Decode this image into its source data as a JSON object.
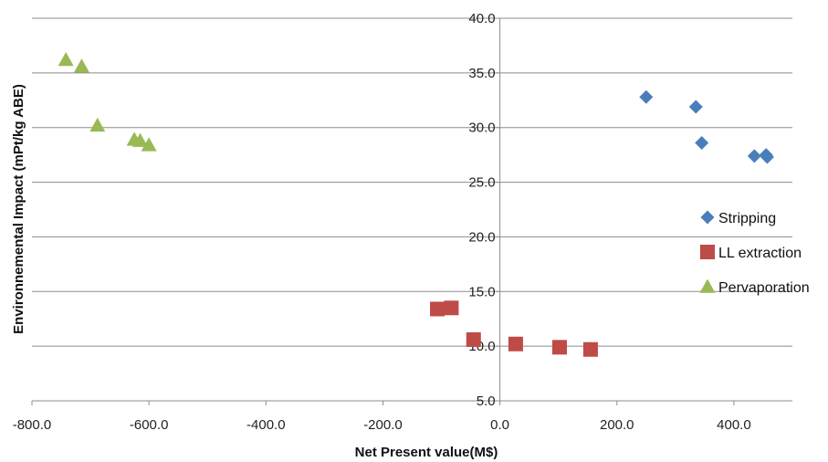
{
  "chart_data": {
    "type": "scatter",
    "title": "",
    "xlabel": "Net Present value(M$)",
    "ylabel": "Environnemental Impact (mPt/kg ABE)",
    "xlim": [
      -800,
      500
    ],
    "ylim": [
      5,
      40
    ],
    "x_ticks": [
      -800,
      -600,
      -400,
      -200,
      0,
      200,
      400
    ],
    "x_tick_labels": [
      "-800.0",
      "-600.0",
      "-400.0",
      "-200.0",
      "0.0",
      "200.0",
      "400.0"
    ],
    "y_ticks": [
      5,
      10,
      15,
      20,
      25,
      30,
      35,
      40
    ],
    "y_tick_labels": [
      "5.0",
      "10.0",
      "15.0",
      "20.0",
      "25.0",
      "30.0",
      "35.0",
      "40.0"
    ],
    "grid": "horizontal",
    "legend_position": "right",
    "series": [
      {
        "name": "Stripping",
        "marker": "diamond",
        "color": "#4a7ebb",
        "points": [
          [
            250,
            32.8
          ],
          [
            335,
            31.9
          ],
          [
            345,
            28.6
          ],
          [
            435,
            27.4
          ],
          [
            455,
            27.5
          ],
          [
            457,
            27.3
          ]
        ]
      },
      {
        "name": "LL extraction",
        "marker": "square",
        "color": "#be4b48",
        "points": [
          [
            -107,
            13.4
          ],
          [
            -83,
            13.5
          ],
          [
            -45,
            10.6
          ],
          [
            27,
            10.2
          ],
          [
            102,
            9.9
          ],
          [
            155,
            9.7
          ]
        ]
      },
      {
        "name": "Pervaporation",
        "marker": "triangle",
        "color": "#98b954",
        "points": [
          [
            -742,
            36.2
          ],
          [
            -715,
            35.6
          ],
          [
            -688,
            30.2
          ],
          [
            -625,
            28.9
          ],
          [
            -615,
            28.8
          ],
          [
            -600,
            28.4
          ]
        ]
      }
    ]
  }
}
